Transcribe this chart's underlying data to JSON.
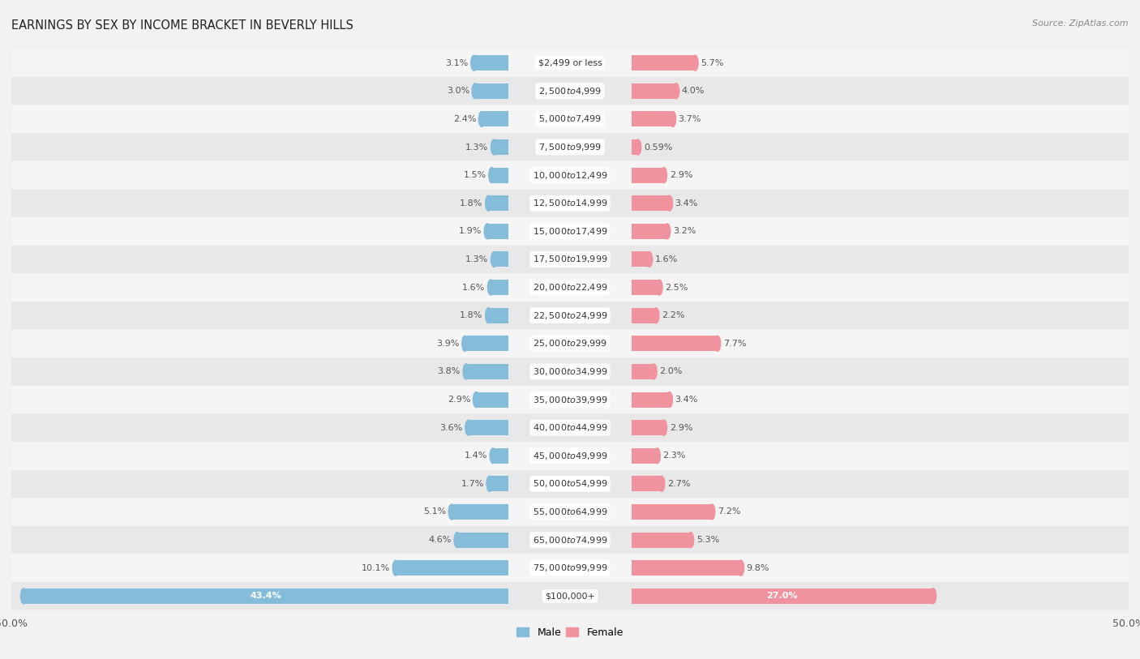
{
  "title": "EARNINGS BY SEX BY INCOME BRACKET IN BEVERLY HILLS",
  "source": "Source: ZipAtlas.com",
  "categories": [
    "$2,499 or less",
    "$2,500 to $4,999",
    "$5,000 to $7,499",
    "$7,500 to $9,999",
    "$10,000 to $12,499",
    "$12,500 to $14,999",
    "$15,000 to $17,499",
    "$17,500 to $19,999",
    "$20,000 to $22,499",
    "$22,500 to $24,999",
    "$25,000 to $29,999",
    "$30,000 to $34,999",
    "$35,000 to $39,999",
    "$40,000 to $44,999",
    "$45,000 to $49,999",
    "$50,000 to $54,999",
    "$55,000 to $64,999",
    "$65,000 to $74,999",
    "$75,000 to $99,999",
    "$100,000+"
  ],
  "male_values": [
    3.1,
    3.0,
    2.4,
    1.3,
    1.5,
    1.8,
    1.9,
    1.3,
    1.6,
    1.8,
    3.9,
    3.8,
    2.9,
    3.6,
    1.4,
    1.7,
    5.1,
    4.6,
    10.1,
    43.4
  ],
  "female_values": [
    5.7,
    4.0,
    3.7,
    0.59,
    2.9,
    3.4,
    3.2,
    1.6,
    2.5,
    2.2,
    7.7,
    2.0,
    3.4,
    2.9,
    2.3,
    2.7,
    7.2,
    5.3,
    9.8,
    27.0
  ],
  "male_color": "#85bcd9",
  "female_color": "#f0939f",
  "row_colors": [
    "#f5f5f5",
    "#e8e8e8"
  ],
  "axis_max": 50.0,
  "bar_height": 0.55,
  "title_fontsize": 10.5,
  "label_fontsize": 8,
  "category_fontsize": 8,
  "source_fontsize": 8
}
